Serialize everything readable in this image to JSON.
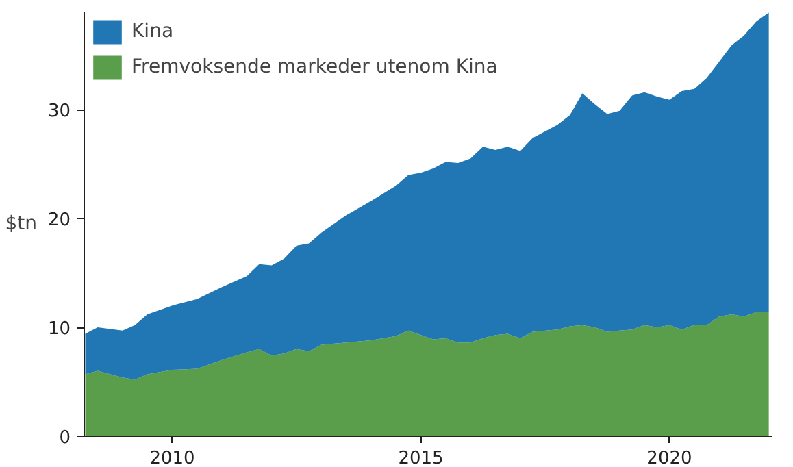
{
  "chart_data": {
    "type": "area",
    "stacked": true,
    "ylabel": "$tn",
    "legend": "top left",
    "grid": false,
    "x": [
      2008.25,
      2008.5,
      2009.0,
      2009.25,
      2009.5,
      2010.0,
      2010.5,
      2011.0,
      2011.5,
      2011.75,
      2012.0,
      2012.25,
      2012.5,
      2012.75,
      2013.0,
      2013.5,
      2014.0,
      2014.5,
      2014.75,
      2015.0,
      2015.25,
      2015.5,
      2015.75,
      2016.0,
      2016.25,
      2016.5,
      2016.75,
      2017.0,
      2017.25,
      2017.75,
      2018.0,
      2018.25,
      2018.5,
      2018.75,
      2019.0,
      2019.25,
      2019.5,
      2019.75,
      2020.0,
      2020.25,
      2020.5,
      2020.75,
      2021.0,
      2021.25,
      2021.5,
      2021.75,
      2022.0
    ],
    "xlim": [
      2008.23,
      2022.06
    ],
    "xticks": [
      2010,
      2015,
      2020
    ],
    "ylim": [
      0,
      39
    ],
    "yticks": [
      0,
      10,
      20,
      30
    ],
    "series": [
      {
        "name": "Fremvoksende markeder utenom Kina",
        "color": "#5a9e4b",
        "values": [
          5.7,
          6.0,
          5.4,
          5.2,
          5.7,
          6.1,
          6.2,
          7.0,
          7.7,
          8.0,
          7.4,
          7.6,
          8.0,
          7.8,
          8.4,
          8.6,
          8.8,
          9.2,
          9.7,
          9.3,
          8.9,
          9.0,
          8.6,
          8.6,
          9.0,
          9.3,
          9.4,
          9.0,
          9.6,
          9.8,
          10.1,
          10.2,
          10.0,
          9.6,
          9.7,
          9.8,
          10.2,
          10.0,
          10.2,
          9.8,
          10.2,
          10.2,
          11.0,
          11.2,
          11.0,
          11.4,
          11.4
        ]
      },
      {
        "name": "Kina",
        "color": "#2077b4",
        "values": [
          3.7,
          4.0,
          4.3,
          5.0,
          5.5,
          5.9,
          6.4,
          6.7,
          7.0,
          7.8,
          8.3,
          8.7,
          9.5,
          9.9,
          10.3,
          11.7,
          12.8,
          13.8,
          14.3,
          14.9,
          15.7,
          16.2,
          16.5,
          16.9,
          17.6,
          17.0,
          17.2,
          17.2,
          17.8,
          18.8,
          19.4,
          21.3,
          20.5,
          20.0,
          20.2,
          21.5,
          21.4,
          21.2,
          20.7,
          21.9,
          21.7,
          22.7,
          23.4,
          24.7,
          25.8,
          26.7,
          27.5
        ]
      }
    ]
  }
}
